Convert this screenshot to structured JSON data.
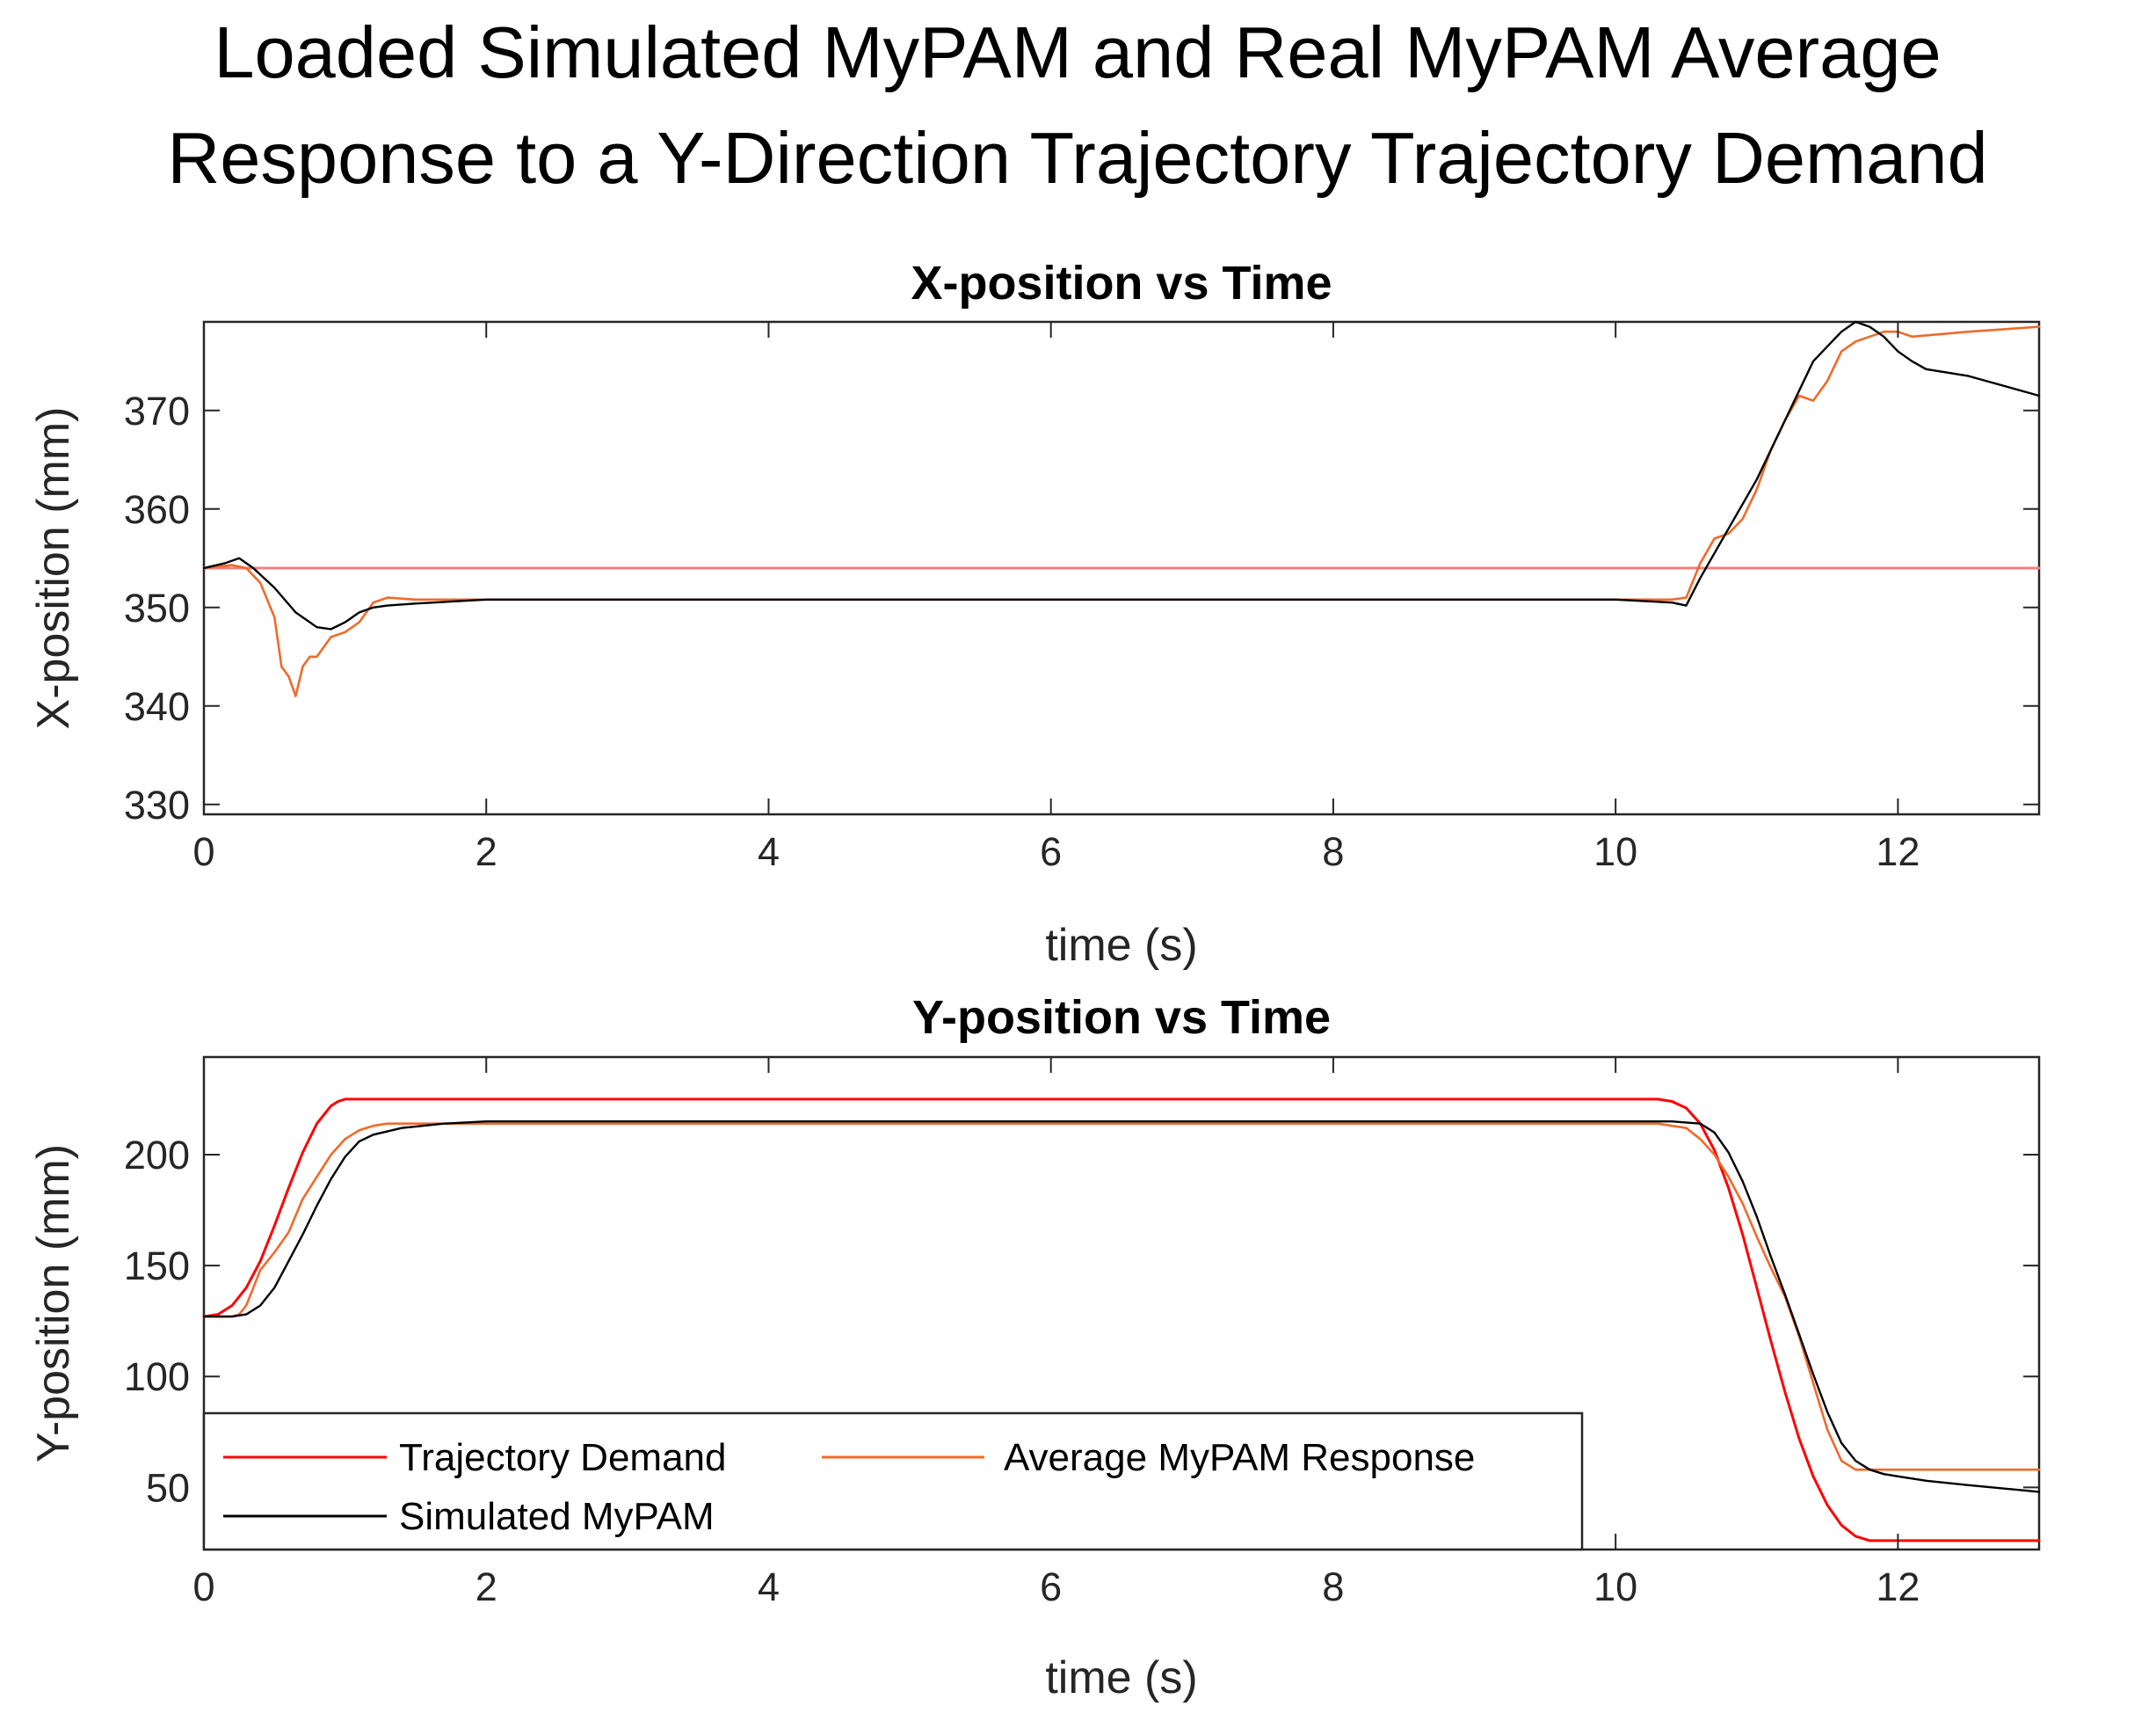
{
  "figure": {
    "title_line1": "Loaded Simulated MyPAM and Real MyPAM Average",
    "title_line2": "Response to a Y-Direction Trajectory Trajectory Demand"
  },
  "colors": {
    "demand": "#ff0000",
    "demand_x": "#f08080",
    "average": "#f06a2a",
    "simulated": "#000000"
  },
  "legend": {
    "demand": "Trajectory Demand",
    "average": "Average MyPAM Response",
    "simulated": "Simulated MyPAM"
  },
  "chart_data": [
    {
      "type": "line",
      "id": "x",
      "title": "X-position vs Time",
      "xlabel": "time (s)",
      "ylabel": "X-position (mm)",
      "xlim": [
        0,
        13
      ],
      "ylim": [
        329,
        379
      ],
      "xticks": [
        0,
        2,
        4,
        6,
        8,
        10,
        12
      ],
      "yticks": [
        330,
        340,
        350,
        360,
        370
      ],
      "series": [
        {
          "name": "Trajectory Demand",
          "color": "#f08080",
          "x": [
            0,
            13
          ],
          "y": [
            354,
            354
          ]
        },
        {
          "name": "Average MyPAM Response",
          "color": "#f06a2a",
          "x": [
            0,
            0.2,
            0.3,
            0.4,
            0.5,
            0.55,
            0.6,
            0.65,
            0.7,
            0.75,
            0.8,
            0.9,
            1.0,
            1.1,
            1.2,
            1.3,
            1.5,
            2.0,
            4,
            6,
            8,
            10,
            10.4,
            10.5,
            10.6,
            10.7,
            10.8,
            10.9,
            11.0,
            11.1,
            11.2,
            11.3,
            11.4,
            11.5,
            11.6,
            11.7,
            11.8,
            11.9,
            12.0,
            12.1,
            12.5,
            13.0
          ],
          "y": [
            354,
            354.3,
            354,
            352.5,
            349,
            344,
            343,
            341,
            344,
            345,
            345,
            347,
            347.5,
            348.5,
            350.5,
            351,
            350.8,
            350.8,
            350.8,
            350.8,
            350.8,
            350.8,
            350.8,
            351,
            354.5,
            357,
            357.5,
            359,
            362,
            366,
            369,
            371.5,
            371,
            373,
            376,
            377,
            377.5,
            378,
            378,
            377.5,
            378,
            378.5
          ]
        },
        {
          "name": "Simulated MyPAM",
          "color": "#000000",
          "x": [
            0,
            0.15,
            0.25,
            0.35,
            0.5,
            0.65,
            0.8,
            0.9,
            1.0,
            1.1,
            1.2,
            1.3,
            1.5,
            2.0,
            4,
            6,
            8,
            10,
            10.4,
            10.5,
            10.6,
            10.8,
            11.0,
            11.2,
            11.4,
            11.6,
            11.7,
            11.8,
            11.9,
            12.0,
            12.1,
            12.2,
            12.5,
            13.0
          ],
          "y": [
            354,
            354.5,
            355,
            354,
            352,
            349.5,
            348,
            347.8,
            348.5,
            349.5,
            350,
            350.2,
            350.4,
            350.8,
            350.8,
            350.8,
            350.8,
            350.8,
            350.5,
            350.2,
            353,
            358,
            363,
            369,
            375,
            378,
            379,
            378.5,
            377.5,
            376,
            375,
            374.2,
            373.5,
            371.5
          ]
        }
      ]
    },
    {
      "type": "line",
      "id": "y",
      "title": "Y-position vs Time",
      "xlabel": "time (s)",
      "ylabel": "Y-position (mm)",
      "xlim": [
        0,
        13
      ],
      "ylim": [
        22,
        244
      ],
      "xticks": [
        0,
        2,
        4,
        6,
        8,
        10,
        12
      ],
      "yticks": [
        50,
        100,
        150,
        200
      ],
      "legend_location": "bottom-left",
      "series": [
        {
          "name": "Trajectory Demand",
          "color": "#ff0000",
          "x": [
            0,
            0.1,
            0.2,
            0.3,
            0.4,
            0.5,
            0.6,
            0.7,
            0.8,
            0.9,
            0.95,
            1.0,
            2,
            4,
            6,
            8,
            10,
            10.3,
            10.4,
            10.5,
            10.6,
            10.7,
            10.8,
            10.9,
            11.0,
            11.1,
            11.2,
            11.3,
            11.4,
            11.5,
            11.6,
            11.7,
            11.8,
            11.9,
            12.0,
            12.5,
            13.0
          ],
          "y": [
            127,
            128,
            132,
            140,
            152,
            168,
            185,
            201,
            214,
            222,
            224,
            225,
            225,
            225,
            225,
            225,
            225,
            225,
            224,
            221,
            214,
            202,
            185,
            164,
            140,
            116,
            93,
            72,
            55,
            42,
            33,
            28,
            26,
            26,
            26,
            26,
            26
          ]
        },
        {
          "name": "Average MyPAM Response",
          "color": "#f06a2a",
          "x": [
            0,
            0.2,
            0.25,
            0.3,
            0.35,
            0.4,
            0.5,
            0.6,
            0.7,
            0.8,
            0.9,
            1.0,
            1.1,
            1.2,
            1.3,
            1.5,
            2,
            4,
            6,
            8,
            10,
            10.3,
            10.5,
            10.6,
            10.7,
            10.8,
            10.9,
            11.0,
            11.1,
            11.2,
            11.3,
            11.4,
            11.5,
            11.6,
            11.7,
            12.0,
            12.5,
            13.0
          ],
          "y": [
            127,
            127,
            128,
            132,
            140,
            148,
            156,
            165,
            180,
            190,
            200,
            207,
            211,
            213,
            214,
            214,
            214,
            214,
            214,
            214,
            214,
            214,
            212,
            207,
            200,
            190,
            178,
            163,
            149,
            136,
            118,
            97,
            76,
            62,
            58,
            58,
            58,
            58
          ]
        },
        {
          "name": "Simulated MyPAM",
          "color": "#000000",
          "x": [
            0,
            0.2,
            0.3,
            0.4,
            0.5,
            0.6,
            0.7,
            0.8,
            0.9,
            1.0,
            1.1,
            1.2,
            1.4,
            1.7,
            2.0,
            4,
            6,
            8,
            10,
            10.4,
            10.6,
            10.7,
            10.8,
            10.9,
            11.0,
            11.1,
            11.2,
            11.3,
            11.4,
            11.5,
            11.6,
            11.7,
            11.8,
            11.9,
            12.0,
            12.2,
            12.5,
            13.0
          ],
          "y": [
            127,
            127,
            128,
            132,
            140,
            152,
            164,
            177,
            189,
            199,
            206,
            209,
            212,
            214,
            215,
            215,
            215,
            215,
            215,
            215,
            214,
            210,
            201,
            188,
            172,
            154,
            137,
            119,
            101,
            84,
            70,
            62,
            58,
            56,
            55,
            53,
            51,
            48
          ]
        }
      ]
    }
  ]
}
